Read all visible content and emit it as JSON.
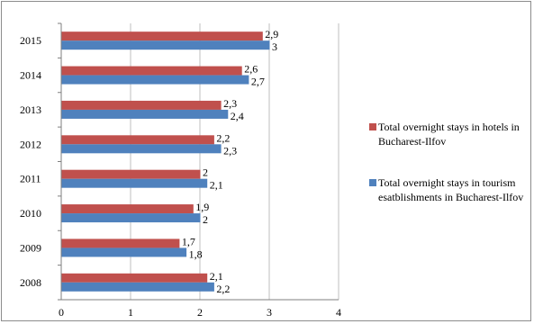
{
  "chart_data": {
    "type": "bar",
    "orientation": "horizontal",
    "categories": [
      "2015",
      "2014",
      "2013",
      "2012",
      "2011",
      "2010",
      "2009",
      "2008"
    ],
    "series": [
      {
        "name": "Total overnight stays in hotels in Bucharest-Ilfov",
        "color": "#c0504d",
        "values": [
          2.9,
          2.6,
          2.3,
          2.2,
          2,
          1.9,
          1.7,
          2.1
        ],
        "labels": [
          "2,9",
          "2,6",
          "2,3",
          "2,2",
          "2",
          "1,9",
          "1,7",
          "2,1"
        ]
      },
      {
        "name": "Total overnight stays in tourism esatblishments in Bucharest-Ilfov",
        "color": "#4f81bd",
        "values": [
          3,
          2.7,
          2.4,
          2.3,
          2.1,
          2,
          1.8,
          2.2
        ],
        "labels": [
          "3",
          "2,7",
          "2,4",
          "2,3",
          "2,1",
          "2",
          "1,8",
          "2,2"
        ]
      }
    ],
    "xlim": [
      0,
      4
    ],
    "xticks": [
      "0",
      "1",
      "2",
      "3",
      "4"
    ],
    "grid": true,
    "legend_position": "right"
  }
}
